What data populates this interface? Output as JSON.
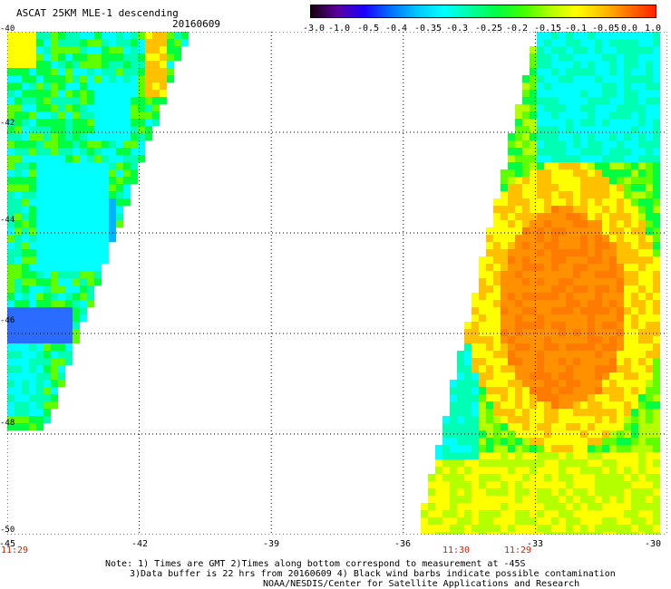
{
  "header": {
    "title": "ASCAT 25KM MLE-1 descending",
    "date": "20160609"
  },
  "colorbar": {
    "ticks": [
      "-3.0",
      "-1.0",
      "-0.5",
      "-0.4",
      "-0.35",
      "-0.3",
      "-0.25",
      "-0.2",
      "-0.15",
      "-0.1",
      "-0.05",
      "0.0",
      "1.0"
    ],
    "colors": [
      "#1a0010",
      "#5a00a0",
      "#1a00ff",
      "#0070ff",
      "#00c8ff",
      "#00ffff",
      "#00ffa0",
      "#00ff40",
      "#40ff00",
      "#b0ff00",
      "#ffff00",
      "#ffc000",
      "#ff7000",
      "#ff2000"
    ]
  },
  "map": {
    "lon_labels": [
      "-45",
      "-42",
      "-39",
      "-36",
      "-33",
      "-30"
    ],
    "lat_labels": [
      "-40",
      "-42",
      "-44",
      "-46",
      "-48",
      "-50"
    ],
    "time_labels": [
      {
        "text": "11:29",
        "lon": -45.0
      },
      {
        "text": "11:30",
        "lon": -34.4
      },
      {
        "text": "11:29",
        "lon": -33.3
      }
    ]
  },
  "notes": [
    "Note: 1) Times are GMT 2)Times along bottom correspond to measurement at -45S",
    "3)Data buffer is 22 hrs from 20160609 4) Black wind barbs indicate possible contamination",
    "NOAA/NESDIS/Center for Satellite Applications and Research"
  ]
}
